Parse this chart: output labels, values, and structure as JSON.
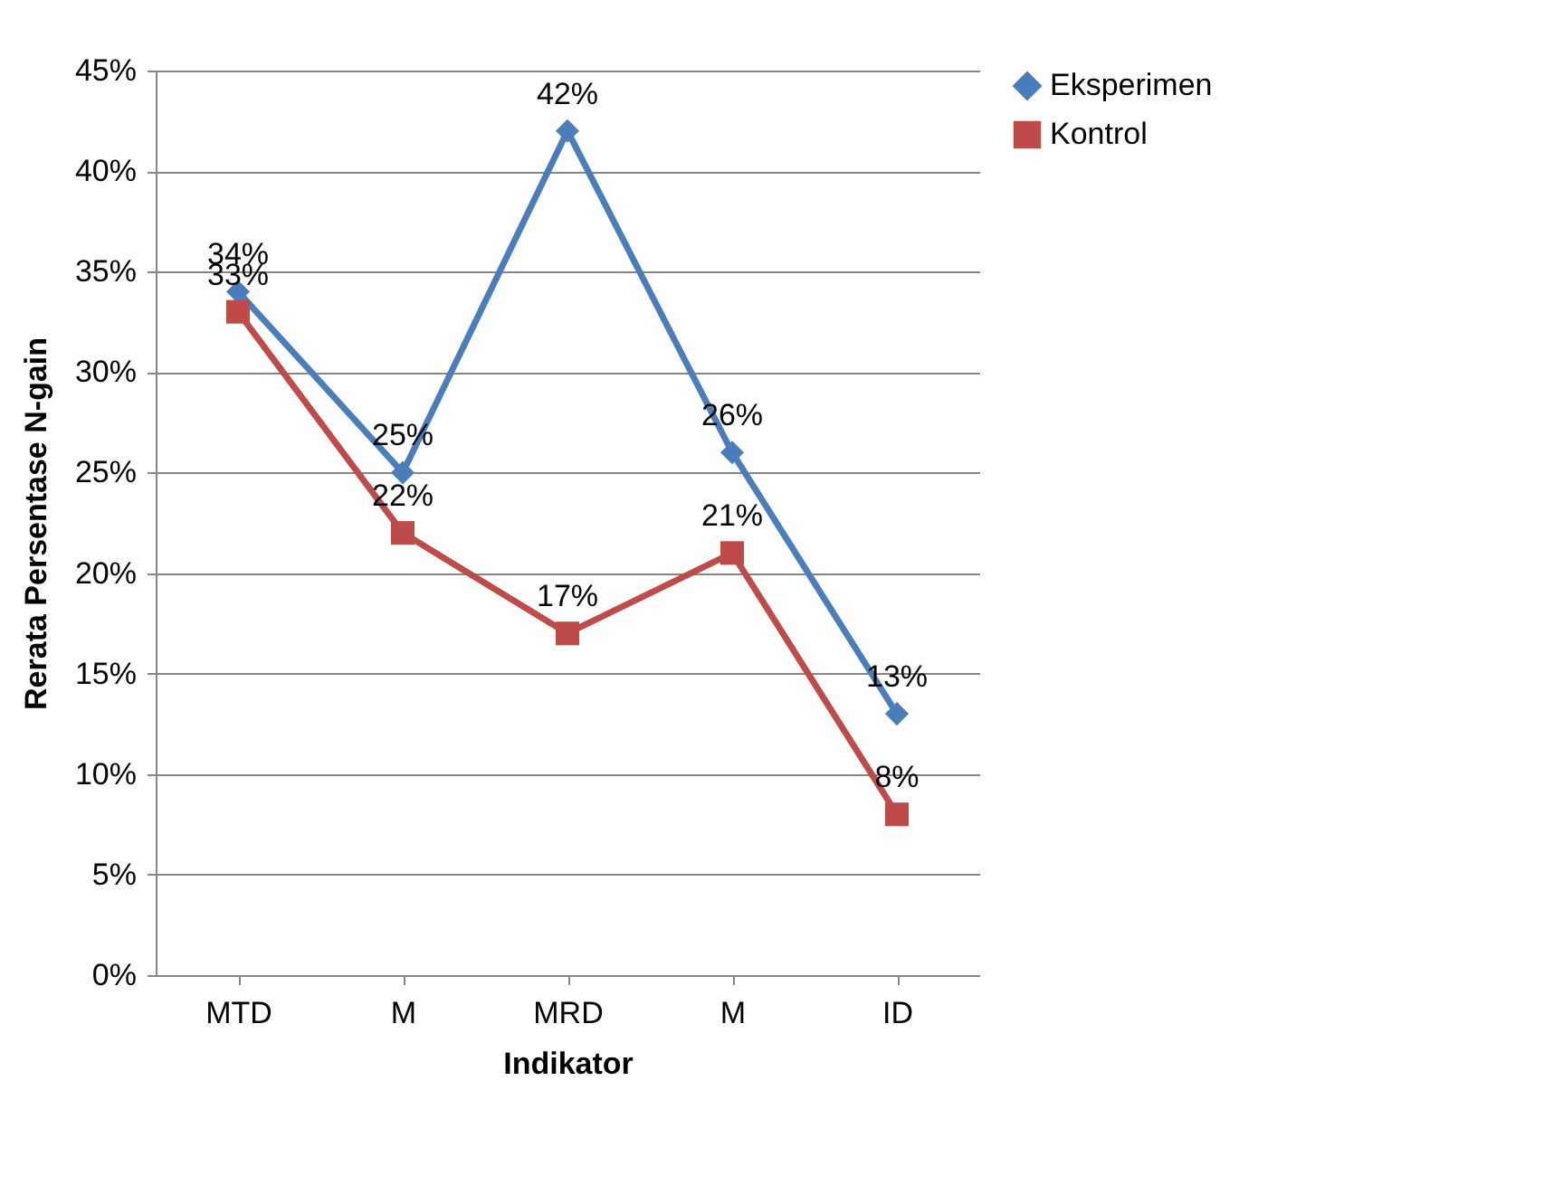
{
  "chart_data": {
    "type": "line",
    "xlabel": "Indikator",
    "ylabel": "Rerata Persentase N-gain",
    "categories": [
      "MTD",
      "M",
      "MRD",
      "M",
      "ID"
    ],
    "series": [
      {
        "name": "Eksperimen",
        "color": "#4a7ebb",
        "marker": "diamond",
        "values": [
          34,
          25,
          42,
          26,
          13
        ],
        "value_labels": [
          "34%",
          "25%",
          "42%",
          "26%",
          "13%"
        ]
      },
      {
        "name": "Kontrol",
        "color": "#be4b48",
        "marker": "square",
        "values": [
          33,
          22,
          17,
          21,
          8
        ],
        "value_labels": [
          "33%",
          "22%",
          "17%",
          "21%",
          "8%"
        ]
      }
    ],
    "ylim": [
      0,
      45
    ],
    "yticks": [
      {
        "value": 0,
        "label": "0%"
      },
      {
        "value": 5,
        "label": "5%"
      },
      {
        "value": 10,
        "label": "10%"
      },
      {
        "value": 15,
        "label": "15%"
      },
      {
        "value": 20,
        "label": "20%"
      },
      {
        "value": 25,
        "label": "25%"
      },
      {
        "value": 30,
        "label": "30%"
      },
      {
        "value": 35,
        "label": "35%"
      },
      {
        "value": 40,
        "label": "40%"
      },
      {
        "value": 45,
        "label": "45%"
      }
    ],
    "grid": "y",
    "legend": "right"
  }
}
